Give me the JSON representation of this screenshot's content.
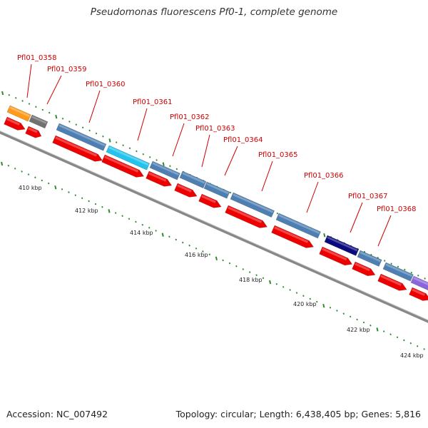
{
  "title": "Pseudomonas fluorescens Pf0-1, complete genome",
  "footer": {
    "accession": "Accession: NC_007492",
    "topology": "Topology: circular; Length: 6,438,405 bp; Genes: 5,816"
  },
  "gene_labels": [
    "Pfl01_0358",
    "Pfl01_0359",
    "Pfl01_0360",
    "Pfl01_0361",
    "Pfl01_0362",
    "Pfl01_0363",
    "Pfl01_0364",
    "Pfl01_0365",
    "Pfl01_0366",
    "Pfl01_0367",
    "Pfl01_0368"
  ],
  "kbp_labels": [
    "410 kbp",
    "412 kbp",
    "414 kbp",
    "416 kbp",
    "418 kbp",
    "420 kbp",
    "422 kbp",
    "424 kbp"
  ],
  "colors": {
    "label_red": "#cc0000",
    "cds_red": "#ee0000",
    "cog_steelblue": "#4d7fb3",
    "cog_cyan": "#22c4ee",
    "cog_navy": "#0a0a80",
    "cog_orange": "#ff9a1a",
    "cog_gray": "#707070",
    "cog_purple": "#8a66dd",
    "tick_green": "#2f8a2f",
    "backbone": "#888888"
  }
}
